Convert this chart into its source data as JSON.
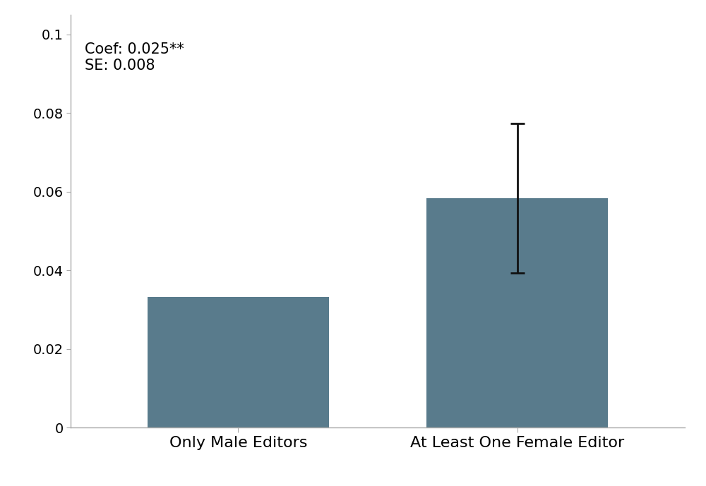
{
  "categories": [
    "Only Male Editors",
    "At Least One Female Editor"
  ],
  "values": [
    0.0333,
    0.0583
  ],
  "error_bar_value": 0.019,
  "error_bar_bar_index": 1,
  "bar_color": "#597B8C",
  "ylim": [
    0,
    0.105
  ],
  "yticks": [
    0,
    0.02,
    0.04,
    0.06,
    0.08,
    0.1
  ],
  "annotation_text": "Coef: 0.025**\nSE: 0.008",
  "annotation_fontsize": 15,
  "bar_width": 0.65,
  "xlabel_fontsize": 16,
  "tick_fontsize": 14,
  "background_color": "#ffffff",
  "spine_color": "#aaaaaa",
  "errorbar_color": "#111111",
  "errorbar_linewidth": 2.0,
  "errorbar_capsize": 7
}
